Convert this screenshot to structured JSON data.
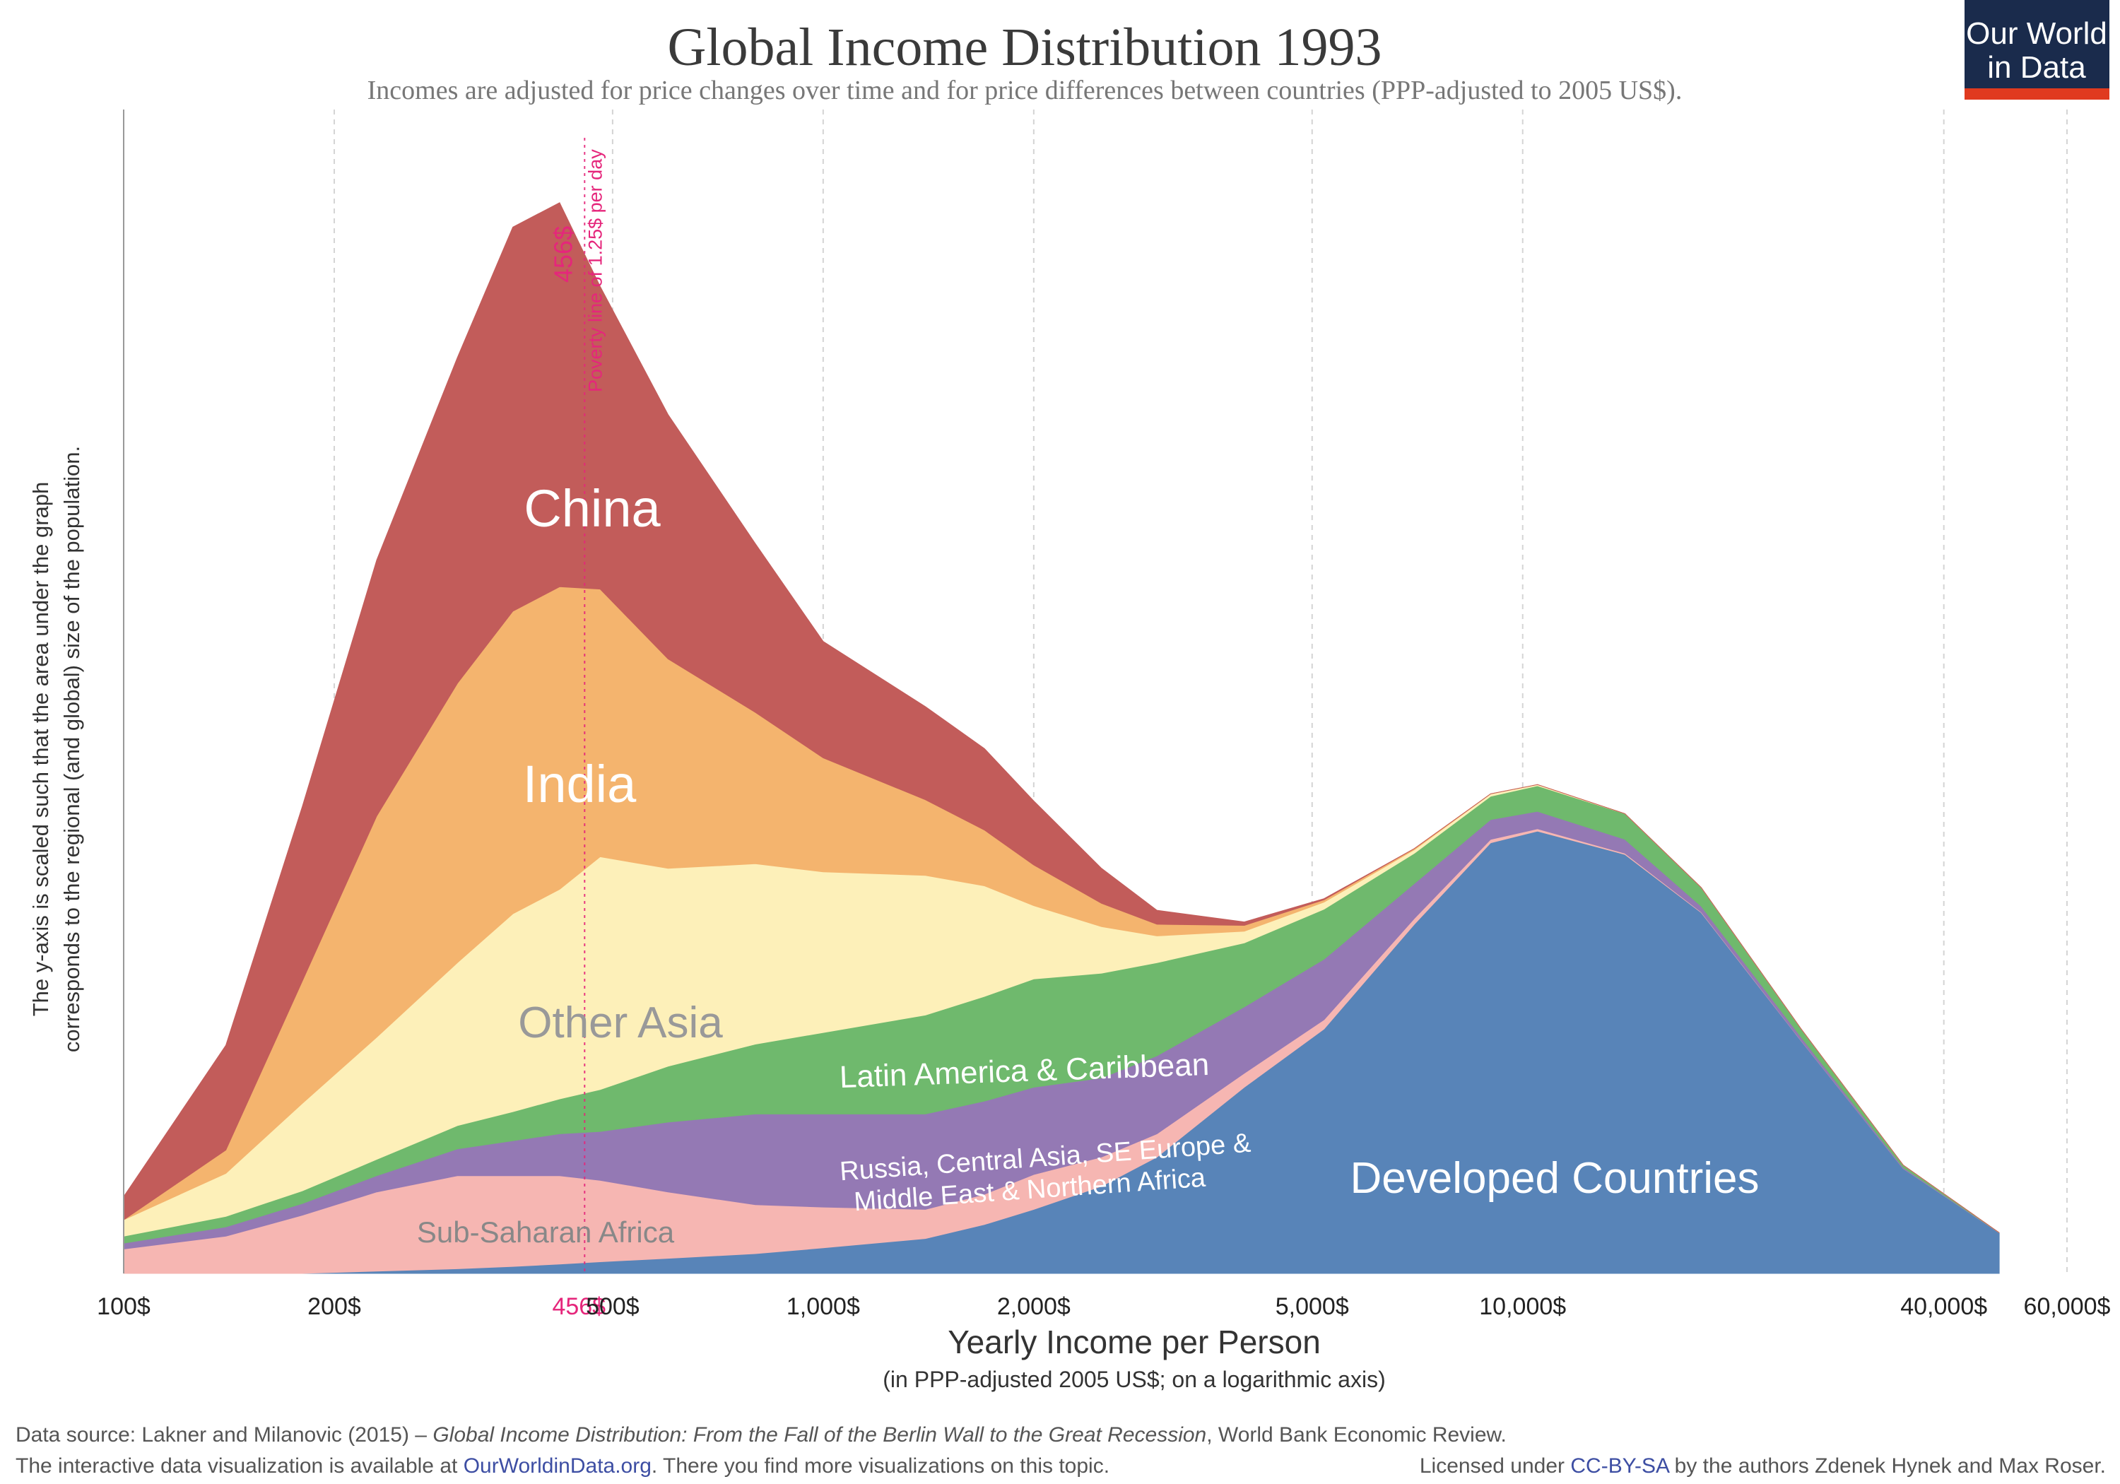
{
  "header": {
    "title": "Global Income Distribution 1993",
    "subtitle": "Incomes are adjusted for price changes over time and for price differences between countries (PPP-adjusted to 2005 US$)."
  },
  "logo": {
    "line1": "Our World",
    "line2": "in Data"
  },
  "chart_data": {
    "type": "area",
    "stacked": true,
    "x_scale": "log",
    "xlim": [
      100,
      60000
    ],
    "xlabel": "Yearly Income per Person",
    "xlabel_sub": "(in PPP-adjusted 2005 US$; on a logarithmic axis)",
    "ylabel_line1": "The y-axis is scaled such that the area under the graph",
    "ylabel_line2": "corresponds to the regional (and global) size of the population.",
    "ylim": [
      0,
      1
    ],
    "grid": true,
    "x_ticks": [
      {
        "value": 100,
        "label": "100$"
      },
      {
        "value": 200,
        "label": "200$"
      },
      {
        "value": 500,
        "label": "500$"
      },
      {
        "value": 1000,
        "label": "1,000$"
      },
      {
        "value": 2000,
        "label": "2,000$"
      },
      {
        "value": 5000,
        "label": "5,000$"
      },
      {
        "value": 10000,
        "label": "10,000$"
      },
      {
        "value": 40000,
        "label": "40,000$"
      },
      {
        "value": 60000,
        "label": "60,000$"
      }
    ],
    "x": [
      100,
      140,
      180,
      230,
      300,
      360,
      420,
      480,
      600,
      800,
      1000,
      1400,
      1700,
      2000,
      2500,
      3000,
      4000,
      5200,
      7000,
      9000,
      10500,
      14000,
      18000,
      25000,
      35000,
      48000
    ],
    "series": [
      {
        "name": "Developed Countries",
        "color": "#5884b8",
        "values": [
          0,
          0,
          0,
          0.002,
          0.004,
          0.006,
          0.008,
          0.01,
          0.013,
          0.017,
          0.022,
          0.03,
          0.042,
          0.055,
          0.075,
          0.1,
          0.16,
          0.21,
          0.3,
          0.37,
          0.38,
          0.36,
          0.31,
          0.2,
          0.09,
          0.035
        ]
      },
      {
        "name": "Sub-Saharan Africa",
        "color": "#f6b6b2",
        "values": [
          0.021,
          0.032,
          0.05,
          0.068,
          0.08,
          0.078,
          0.076,
          0.07,
          0.057,
          0.042,
          0.035,
          0.025,
          0.026,
          0.03,
          0.025,
          0.02,
          0.012,
          0.008,
          0.005,
          0.003,
          0.002,
          0.001,
          0.0005,
          0.0002,
          0,
          0
        ]
      },
      {
        "name": "Russia, Central Asia, SE Europe & Middle East & Northern Africa",
        "color": "#9479b4",
        "values": [
          0.005,
          0.008,
          0.01,
          0.014,
          0.023,
          0.03,
          0.036,
          0.042,
          0.06,
          0.078,
          0.08,
          0.082,
          0.08,
          0.075,
          0.068,
          0.067,
          0.057,
          0.052,
          0.03,
          0.017,
          0.015,
          0.012,
          0.005,
          0.003,
          0.001,
          0
        ]
      },
      {
        "name": "Latin America & Caribbean",
        "color": "#6fb96d",
        "values": [
          0.006,
          0.009,
          0.011,
          0.014,
          0.02,
          0.025,
          0.03,
          0.036,
          0.048,
          0.06,
          0.07,
          0.085,
          0.09,
          0.093,
          0.09,
          0.08,
          0.055,
          0.043,
          0.026,
          0.02,
          0.022,
          0.022,
          0.016,
          0.007,
          0.002,
          0
        ]
      },
      {
        "name": "Other Asia",
        "color": "#fdf0b9",
        "values": [
          0.014,
          0.037,
          0.075,
          0.105,
          0.14,
          0.17,
          0.18,
          0.2,
          0.17,
          0.155,
          0.138,
          0.12,
          0.095,
          0.063,
          0.04,
          0.023,
          0.01,
          0.006,
          0.003,
          0.002,
          0.001,
          0,
          0,
          0,
          0,
          0
        ]
      },
      {
        "name": "India",
        "color": "#f4b46e",
        "values": [
          0.0,
          0.02,
          0.105,
          0.19,
          0.24,
          0.26,
          0.26,
          0.23,
          0.18,
          0.13,
          0.098,
          0.065,
          0.048,
          0.035,
          0.02,
          0.01,
          0.005,
          0.002,
          0.001,
          0,
          0,
          0,
          0,
          0,
          0,
          0
        ]
      },
      {
        "name": "China",
        "color": "#c25c5a",
        "values": [
          0.02,
          0.09,
          0.15,
          0.22,
          0.28,
          0.33,
          0.33,
          0.26,
          0.21,
          0.145,
          0.1,
          0.08,
          0.07,
          0.055,
          0.03,
          0.012,
          0.003,
          0.001,
          0,
          0,
          0,
          0,
          0,
          0,
          0,
          0
        ]
      }
    ],
    "annotation": {
      "x": 456,
      "value_label": "456$",
      "text": "Poverty line of 1.25$ per day",
      "axis_label": "456$",
      "color": "#e5267b"
    },
    "region_labels": {
      "china": "China",
      "india": "India",
      "other_asia": "Other Asia",
      "latin": "Latin America & Caribbean",
      "russia_line1": "Russia, Central Asia, SE Europe &",
      "russia_line2": "Middle East & Northern Africa",
      "ssa": "Sub-Saharan Africa",
      "developed": "Developed Countries"
    }
  },
  "footer": {
    "line1_prefix": "Data source: Lakner and Milanovic (2015) – ",
    "line1_italic": "Global Income Distribution: From the Fall of the Berlin Wall to the Great Recession",
    "line1_suffix": ", World Bank Economic Review.",
    "line2_prefix": "The interactive data visualization is available at ",
    "line2_link": "OurWorldinData.org",
    "line2_suffix": ". There you find more visualizations on this topic.",
    "license_prefix": "Licensed under ",
    "license_link": "CC-BY-SA",
    "license_suffix": " by the authors Zdenek Hynek and Max Roser."
  }
}
